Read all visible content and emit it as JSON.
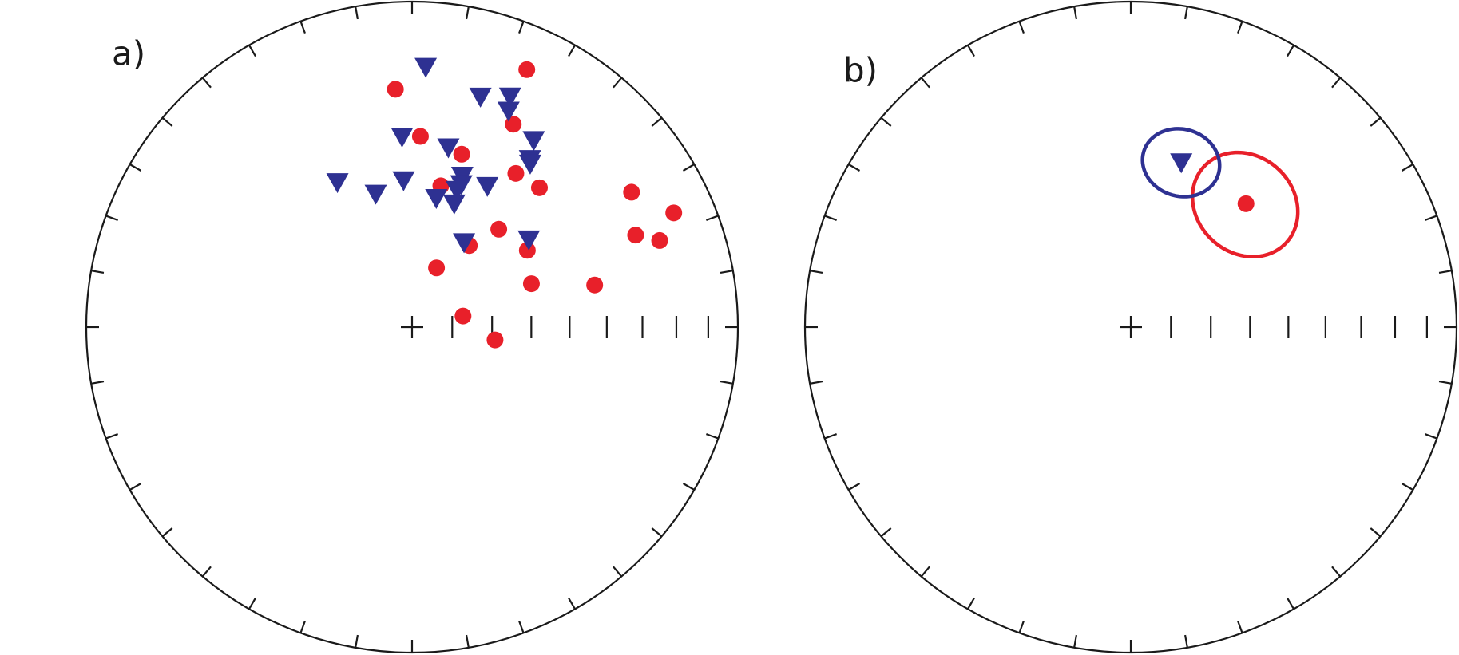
{
  "chart_data": [
    {
      "type": "stereonet",
      "label": "a)",
      "dec_ticks": [
        0,
        10,
        20,
        30,
        40,
        50,
        60,
        70,
        80,
        90,
        100,
        110,
        120,
        130,
        140,
        150,
        160,
        170,
        180,
        190,
        200,
        210,
        220,
        230,
        240,
        250,
        260,
        270,
        280,
        290,
        300,
        310,
        320,
        330,
        340,
        350
      ],
      "inc_ticks": [
        80,
        70,
        60,
        50,
        40,
        30,
        20,
        10
      ],
      "series": [
        {
          "color": "#e8202a",
          "marker": "circle",
          "dec": [
            24,
            356,
            26.5,
            2.5,
            16,
            34,
            42.4,
            11.5,
            58.4,
            66.4,
            41.5,
            67.6,
            70.7,
            35,
            56.3,
            22.4,
            70,
            77,
            77.7,
            98.8
          ],
          "inc": [
            14.5,
            27.6,
            31,
            41,
            44,
            42.5,
            41.6,
            53.5,
            22,
            13.4,
            57,
            26.7,
            20.6,
            65,
            55,
            74,
            58,
            42,
            77,
            69
          ]
        },
        {
          "color": "#2e3192",
          "marker": "triangle",
          "dec": [
            3,
            16.5,
            23,
            24,
            357,
            11.4,
            33,
            35,
            35.8,
            332.8,
            344.8,
            356.7,
            18.3,
            19,
            18,
            28,
            10.6,
            18.8,
            31.4,
            53
          ],
          "inc": [
            21,
            27,
            24,
            28,
            41,
            43,
            32,
            37,
            38,
            48.5,
            55,
            52.7,
            49.4,
            51.6,
            53.4,
            49.3,
            56.8,
            57,
            65,
            53
          ]
        }
      ]
    },
    {
      "type": "stereonet",
      "label": "b)",
      "dec_ticks": [
        0,
        10,
        20,
        30,
        40,
        50,
        60,
        70,
        80,
        90,
        100,
        110,
        120,
        130,
        140,
        150,
        160,
        170,
        180,
        190,
        200,
        210,
        220,
        230,
        240,
        250,
        260,
        270,
        280,
        290,
        300,
        310,
        320,
        330,
        340,
        350
      ],
      "inc_ticks": [
        80,
        70,
        60,
        50,
        40,
        30,
        20,
        10
      ],
      "series": [
        {
          "color": "#e8202a",
          "marker": "circle",
          "dec": [
            43
          ],
          "inc": [
            47
          ],
          "a95": [
            13
          ]
        },
        {
          "color": "#2e3192",
          "marker": "triangle",
          "dec": [
            17
          ],
          "inc": [
            46
          ],
          "a95": [
            9
          ]
        }
      ]
    }
  ]
}
